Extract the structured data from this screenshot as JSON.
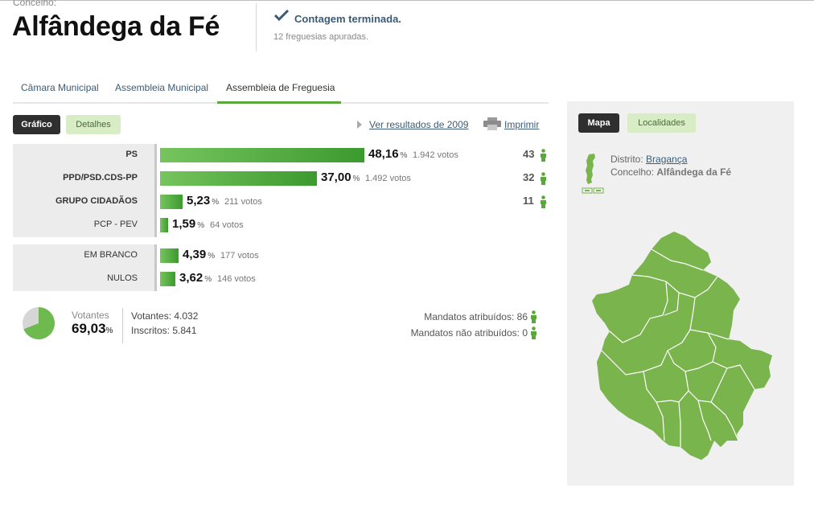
{
  "header": {
    "concelho_label": "Concelho:",
    "title": "Alfândega da Fé",
    "status": "Contagem terminada.",
    "apuradas": "12 freguesias apuradas."
  },
  "tabs": [
    {
      "label": "Câmara Municipal",
      "active": false
    },
    {
      "label": "Assembleia Municipal",
      "active": false
    },
    {
      "label": "Assembleia de Freguesia",
      "active": true
    }
  ],
  "toolbar": {
    "grafico": "Gráfico",
    "detalhes": "Detalhes",
    "ver_resultados": "Ver resultados de 2009",
    "imprimir": "Imprimir"
  },
  "results": [
    {
      "party": "PS",
      "bold": true,
      "pct": "48,16",
      "votos": "1.942 votos",
      "mandatos": "43"
    },
    {
      "party": "PPD/PSD.CDS-PP",
      "bold": true,
      "pct": "37,00",
      "votos": "1.492 votos",
      "mandatos": "32"
    },
    {
      "party": "GRUPO CIDADÃOS",
      "bold": true,
      "pct": "5,23",
      "votos": "211 votos",
      "mandatos": "11"
    },
    {
      "party": "PCP - PEV",
      "bold": false,
      "pct": "1,59",
      "votos": "64 votos",
      "mandatos": ""
    }
  ],
  "other_results": [
    {
      "party": "EM BRANCO",
      "pct": "4,39",
      "votos": "177 votos"
    },
    {
      "party": "NULOS",
      "pct": "3,62",
      "votos": "146 votos"
    }
  ],
  "pct_symbol": "%",
  "summary": {
    "votantes_label": "Votantes",
    "votantes_pct": "69,03",
    "votantes_fraction": 0.6903,
    "votantes": "Votantes: 4.032",
    "inscritos": "Inscritos: 5.841",
    "mandatos_atribuidos": "Mandatos atribuídos: 86",
    "mandatos_nao_atribuidos": "Mandatos não atribuídos: 0"
  },
  "map": {
    "btn_mapa": "Mapa",
    "btn_localidades": "Localidades",
    "distrito_label": "Distrito:",
    "distrito": "Bragança",
    "concelho_label": "Concelho:",
    "concelho": "Alfândega da Fé"
  },
  "colors": {
    "green": "#5aa83c",
    "map_fill": "#7ab44c",
    "link": "#3a5c78"
  }
}
